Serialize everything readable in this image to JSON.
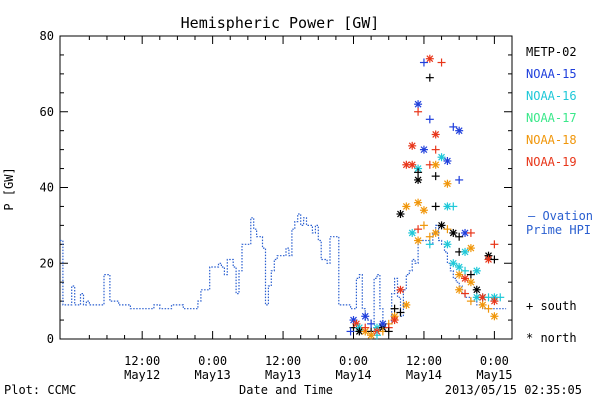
{
  "chart_data": {
    "type": "scatter",
    "title": "Hemispheric Power [GW]",
    "ylabel": "P [GW]",
    "xlabel": "Date and Time",
    "ylim": [
      0,
      80
    ],
    "y_ticks": [
      "0",
      "20",
      "40",
      "60",
      "80"
    ],
    "x_unit": "hours since May 11 00:00 (2013)",
    "xlim": [
      -2,
      75
    ],
    "x_ticks": [
      {
        "x": 12,
        "time": "12:00",
        "date": "May12"
      },
      {
        "x": 24,
        "time": "0:00",
        "date": "May13"
      },
      {
        "x": 36,
        "time": "12:00",
        "date": "May13"
      },
      {
        "x": 48,
        "time": "0:00",
        "date": "May14"
      },
      {
        "x": 60,
        "time": "12:00",
        "date": "May14"
      },
      {
        "x": 72,
        "time": "0:00",
        "date": "May15"
      }
    ],
    "footer_left": "Plot: CCMC",
    "footer_right": "2013/05/15 02:35:05",
    "legend_satellites": [
      {
        "name": "METP-02",
        "color": "#000000"
      },
      {
        "name": "NOAA-15",
        "color": "#1f3fdc"
      },
      {
        "name": "NOAA-16",
        "color": "#1ec8d8"
      },
      {
        "name": "NOAA-17",
        "color": "#3ae88a"
      },
      {
        "name": "NOAA-18",
        "color": "#f0960a"
      },
      {
        "name": "NOAA-19",
        "color": "#e8361a"
      }
    ],
    "ovation_label_line1": "— Ovation",
    "ovation_label_line2": "Prime HPI",
    "ovation_color": "#2a5fd0",
    "marker_south": "+ south",
    "marker_north": "* north",
    "ovation_series": [
      [
        -2,
        26
      ],
      [
        -1.5,
        9
      ],
      [
        -1,
        9
      ],
      [
        0,
        9
      ],
      [
        0,
        14
      ],
      [
        0.5,
        14
      ],
      [
        0.5,
        9
      ],
      [
        1,
        9
      ],
      [
        1.5,
        12
      ],
      [
        2,
        9
      ],
      [
        2.5,
        10
      ],
      [
        3,
        9
      ],
      [
        4,
        9
      ],
      [
        5,
        9
      ],
      [
        5.5,
        17
      ],
      [
        6,
        17
      ],
      [
        6.5,
        10
      ],
      [
        7,
        10
      ],
      [
        8,
        9
      ],
      [
        9,
        9
      ],
      [
        10,
        8
      ],
      [
        11,
        8
      ],
      [
        12,
        8
      ],
      [
        13,
        8
      ],
      [
        14,
        9
      ],
      [
        15,
        8
      ],
      [
        16,
        8
      ],
      [
        17,
        9
      ],
      [
        18,
        9
      ],
      [
        19,
        8
      ],
      [
        20,
        8
      ],
      [
        21,
        8
      ],
      [
        21.5,
        10
      ],
      [
        22,
        13
      ],
      [
        23,
        13
      ],
      [
        23.5,
        19
      ],
      [
        24,
        19
      ],
      [
        25,
        20
      ],
      [
        25.5,
        19
      ],
      [
        26,
        17
      ],
      [
        26.5,
        21
      ],
      [
        27,
        21
      ],
      [
        27.5,
        19
      ],
      [
        28,
        12
      ],
      [
        28.5,
        18
      ],
      [
        29,
        25
      ],
      [
        30,
        25
      ],
      [
        30.5,
        32
      ],
      [
        31,
        29
      ],
      [
        31.5,
        27
      ],
      [
        32,
        27
      ],
      [
        32.5,
        24
      ],
      [
        33,
        9
      ],
      [
        33.5,
        14
      ],
      [
        34,
        18
      ],
      [
        34.5,
        21
      ],
      [
        35,
        22
      ],
      [
        36,
        22
      ],
      [
        36.5,
        24
      ],
      [
        37,
        22
      ],
      [
        37.5,
        29
      ],
      [
        38,
        31
      ],
      [
        38.5,
        33
      ],
      [
        39,
        30
      ],
      [
        39.5,
        32
      ],
      [
        40,
        30
      ],
      [
        41,
        28
      ],
      [
        41.5,
        30
      ],
      [
        42,
        26
      ],
      [
        42.5,
        21
      ],
      [
        43,
        21
      ],
      [
        43.5,
        20
      ],
      [
        44,
        27
      ],
      [
        44.5,
        27
      ],
      [
        45,
        27
      ],
      [
        45.5,
        9
      ],
      [
        46,
        9
      ],
      [
        46.5,
        9
      ],
      [
        47,
        9
      ],
      [
        47.5,
        8
      ],
      [
        48,
        8
      ],
      [
        48.5,
        16
      ],
      [
        49,
        17
      ],
      [
        49.5,
        8
      ],
      [
        50,
        5
      ],
      [
        51,
        4
      ],
      [
        51.5,
        16
      ],
      [
        52,
        17
      ],
      [
        52.5,
        8
      ],
      [
        53,
        4
      ],
      [
        54,
        4
      ],
      [
        54.5,
        12
      ],
      [
        55,
        16
      ],
      [
        55.5,
        11
      ],
      [
        56,
        6
      ],
      [
        56.5,
        13
      ],
      [
        57,
        17
      ],
      [
        57.5,
        18
      ],
      [
        58,
        21
      ],
      [
        58.5,
        20
      ],
      [
        59,
        26
      ],
      [
        59.5,
        26
      ],
      [
        60,
        26
      ],
      [
        60.5,
        26
      ],
      [
        61,
        25
      ],
      [
        61.5,
        28
      ],
      [
        62,
        30
      ],
      [
        62.5,
        26
      ],
      [
        63,
        25
      ],
      [
        63.5,
        23
      ],
      [
        64,
        20
      ],
      [
        64.5,
        18
      ],
      [
        65,
        16
      ],
      [
        65.5,
        15
      ],
      [
        66,
        14
      ],
      [
        66.5,
        12
      ],
      [
        67,
        11
      ],
      [
        68,
        10
      ],
      [
        69,
        9
      ],
      [
        70,
        8
      ],
      [
        71,
        8
      ],
      [
        72,
        8
      ],
      [
        73,
        8
      ],
      [
        74,
        8
      ]
    ],
    "points": [
      {
        "sat": "NOAA-15",
        "m": "+",
        "x": 60,
        "y": 73
      },
      {
        "sat": "NOAA-19",
        "m": "+",
        "x": 63,
        "y": 73
      },
      {
        "sat": "METP-02",
        "m": "+",
        "x": 61,
        "y": 69
      },
      {
        "sat": "NOAA-19",
        "m": "*",
        "x": 61,
        "y": 74
      },
      {
        "sat": "NOAA-15",
        "m": "*",
        "x": 59,
        "y": 62
      },
      {
        "sat": "NOAA-19",
        "m": "+",
        "x": 59,
        "y": 60
      },
      {
        "sat": "NOAA-15",
        "m": "+",
        "x": 61,
        "y": 58
      },
      {
        "sat": "NOAA-19",
        "m": "*",
        "x": 62,
        "y": 54
      },
      {
        "sat": "NOAA-15",
        "m": "*",
        "x": 60,
        "y": 50
      },
      {
        "sat": "NOAA-19",
        "m": "*",
        "x": 58,
        "y": 51
      },
      {
        "sat": "NOAA-19",
        "m": "+",
        "x": 62,
        "y": 50
      },
      {
        "sat": "NOAA-15",
        "m": "+",
        "x": 65,
        "y": 56
      },
      {
        "sat": "NOAA-15",
        "m": "*",
        "x": 66,
        "y": 55
      },
      {
        "sat": "NOAA-16",
        "m": "*",
        "x": 63,
        "y": 48
      },
      {
        "sat": "NOAA-19",
        "m": "*",
        "x": 58,
        "y": 46
      },
      {
        "sat": "NOAA-15",
        "m": "*",
        "x": 64,
        "y": 47
      },
      {
        "sat": "NOAA-19",
        "m": "+",
        "x": 61,
        "y": 46
      },
      {
        "sat": "NOAA-18",
        "m": "*",
        "x": 62,
        "y": 46
      },
      {
        "sat": "NOAA-16",
        "m": "*",
        "x": 59,
        "y": 45
      },
      {
        "sat": "NOAA-19",
        "m": "*",
        "x": 57,
        "y": 46
      },
      {
        "sat": "METP-02",
        "m": "*",
        "x": 59,
        "y": 42
      },
      {
        "sat": "METP-02",
        "m": "+",
        "x": 59,
        "y": 44
      },
      {
        "sat": "METP-02",
        "m": "+",
        "x": 62,
        "y": 43
      },
      {
        "sat": "NOAA-18",
        "m": "*",
        "x": 64,
        "y": 41
      },
      {
        "sat": "NOAA-15",
        "m": "+",
        "x": 66,
        "y": 42
      },
      {
        "sat": "METP-02",
        "m": "*",
        "x": 56,
        "y": 33
      },
      {
        "sat": "NOAA-18",
        "m": "*",
        "x": 57,
        "y": 35
      },
      {
        "sat": "NOAA-18",
        "m": "*",
        "x": 59,
        "y": 36
      },
      {
        "sat": "NOAA-18",
        "m": "*",
        "x": 60,
        "y": 34
      },
      {
        "sat": "METP-02",
        "m": "+",
        "x": 62,
        "y": 35
      },
      {
        "sat": "NOAA-16",
        "m": "*",
        "x": 64,
        "y": 35
      },
      {
        "sat": "NOAA-16",
        "m": "+",
        "x": 65,
        "y": 35
      },
      {
        "sat": "NOAA-16",
        "m": "*",
        "x": 58,
        "y": 28
      },
      {
        "sat": "NOAA-19",
        "m": "+",
        "x": 59,
        "y": 29
      },
      {
        "sat": "NOAA-18",
        "m": "+",
        "x": 60,
        "y": 30
      },
      {
        "sat": "NOAA-18",
        "m": "*",
        "x": 62,
        "y": 28
      },
      {
        "sat": "METP-02",
        "m": "*",
        "x": 63,
        "y": 30
      },
      {
        "sat": "NOAA-18",
        "m": "+",
        "x": 64,
        "y": 29
      },
      {
        "sat": "METP-02",
        "m": "*",
        "x": 65,
        "y": 28
      },
      {
        "sat": "METP-02",
        "m": "+",
        "x": 66,
        "y": 27
      },
      {
        "sat": "NOAA-15",
        "m": "*",
        "x": 67,
        "y": 28
      },
      {
        "sat": "NOAA-19",
        "m": "+",
        "x": 68,
        "y": 28
      },
      {
        "sat": "NOAA-18",
        "m": "*",
        "x": 59,
        "y": 26
      },
      {
        "sat": "NOAA-18",
        "m": "+",
        "x": 61,
        "y": 27
      },
      {
        "sat": "NOAA-16",
        "m": "+",
        "x": 61,
        "y": 25
      },
      {
        "sat": "NOAA-16",
        "m": "*",
        "x": 64,
        "y": 25
      },
      {
        "sat": "METP-02",
        "m": "+",
        "x": 66,
        "y": 23
      },
      {
        "sat": "NOAA-16",
        "m": "*",
        "x": 67,
        "y": 23
      },
      {
        "sat": "NOAA-18",
        "m": "*",
        "x": 68,
        "y": 24
      },
      {
        "sat": "NOAA-19",
        "m": "+",
        "x": 72,
        "y": 25
      },
      {
        "sat": "METP-02",
        "m": "*",
        "x": 71,
        "y": 22
      },
      {
        "sat": "NOAA-19",
        "m": "*",
        "x": 71,
        "y": 21
      },
      {
        "sat": "METP-02",
        "m": "+",
        "x": 72,
        "y": 21
      },
      {
        "sat": "NOAA-16",
        "m": "*",
        "x": 65,
        "y": 20
      },
      {
        "sat": "NOAA-16",
        "m": "*",
        "x": 66,
        "y": 19
      },
      {
        "sat": "NOAA-18",
        "m": "*",
        "x": 66,
        "y": 17
      },
      {
        "sat": "NOAA-16",
        "m": "+",
        "x": 67,
        "y": 18
      },
      {
        "sat": "NOAA-19",
        "m": "*",
        "x": 67,
        "y": 16
      },
      {
        "sat": "METP-02",
        "m": "+",
        "x": 68,
        "y": 17
      },
      {
        "sat": "NOAA-18",
        "m": "*",
        "x": 68,
        "y": 15
      },
      {
        "sat": "METP-02",
        "m": "*",
        "x": 69,
        "y": 13
      },
      {
        "sat": "NOAA-16",
        "m": "*",
        "x": 69,
        "y": 18
      },
      {
        "sat": "NOAA-18",
        "m": "*",
        "x": 66,
        "y": 13
      },
      {
        "sat": "NOAA-19",
        "m": "+",
        "x": 67,
        "y": 12
      },
      {
        "sat": "NOAA-18",
        "m": "+",
        "x": 68,
        "y": 10
      },
      {
        "sat": "NOAA-16",
        "m": "*",
        "x": 69,
        "y": 11
      },
      {
        "sat": "NOAA-16",
        "m": "*",
        "x": 70,
        "y": 11
      },
      {
        "sat": "NOAA-18",
        "m": "*",
        "x": 70,
        "y": 9
      },
      {
        "sat": "NOAA-19",
        "m": "*",
        "x": 70,
        "y": 11
      },
      {
        "sat": "NOAA-16",
        "m": "+",
        "x": 71,
        "y": 11
      },
      {
        "sat": "NOAA-16",
        "m": "*",
        "x": 72,
        "y": 11
      },
      {
        "sat": "NOAA-18",
        "m": "+",
        "x": 71,
        "y": 8
      },
      {
        "sat": "NOAA-19",
        "m": "*",
        "x": 72,
        "y": 10
      },
      {
        "sat": "NOAA-16",
        "m": "+",
        "x": 73,
        "y": 11
      },
      {
        "sat": "NOAA-18",
        "m": "*",
        "x": 72,
        "y": 6
      },
      {
        "sat": "NOAA-19",
        "m": "*",
        "x": 56,
        "y": 13
      },
      {
        "sat": "METP-02",
        "m": "+",
        "x": 55,
        "y": 8
      },
      {
        "sat": "NOAA-18",
        "m": "*",
        "x": 55,
        "y": 6
      },
      {
        "sat": "NOAA-19",
        "m": "*",
        "x": 55,
        "y": 5
      },
      {
        "sat": "NOAA-18",
        "m": "+",
        "x": 54,
        "y": 4
      },
      {
        "sat": "METP-02",
        "m": "+",
        "x": 56,
        "y": 7
      },
      {
        "sat": "NOAA-18",
        "m": "*",
        "x": 57,
        "y": 9
      },
      {
        "sat": "NOAA-15",
        "m": "*",
        "x": 48,
        "y": 5
      },
      {
        "sat": "METP-02",
        "m": "+",
        "x": 48,
        "y": 3
      },
      {
        "sat": "NOAA-19",
        "m": "*",
        "x": 48.5,
        "y": 4
      },
      {
        "sat": "NOAA-16",
        "m": "*",
        "x": 49,
        "y": 3
      },
      {
        "sat": "METP-02",
        "m": "*",
        "x": 49,
        "y": 2
      },
      {
        "sat": "NOAA-15",
        "m": "*",
        "x": 50,
        "y": 6
      },
      {
        "sat": "NOAA-18",
        "m": "*",
        "x": 50,
        "y": 2
      },
      {
        "sat": "NOAA-19",
        "m": "+",
        "x": 50,
        "y": 3
      },
      {
        "sat": "METP-02",
        "m": "+",
        "x": 51,
        "y": 2
      },
      {
        "sat": "NOAA-15",
        "m": "+",
        "x": 51,
        "y": 4
      },
      {
        "sat": "NOAA-16",
        "m": "*",
        "x": 52,
        "y": 3
      },
      {
        "sat": "NOAA-19",
        "m": "*",
        "x": 52,
        "y": 2
      },
      {
        "sat": "METP-02",
        "m": "*",
        "x": 53,
        "y": 3
      },
      {
        "sat": "NOAA-15",
        "m": "*",
        "x": 53,
        "y": 4
      },
      {
        "sat": "NOAA-18",
        "m": "+",
        "x": 53,
        "y": 2
      },
      {
        "sat": "NOAA-16",
        "m": "+",
        "x": 52,
        "y": 1
      },
      {
        "sat": "NOAA-19",
        "m": "+",
        "x": 54,
        "y": 3
      },
      {
        "sat": "METP-02",
        "m": "+",
        "x": 54,
        "y": 2
      },
      {
        "sat": "NOAA-15",
        "m": "+",
        "x": 47.5,
        "y": 2
      },
      {
        "sat": "NOAA-18",
        "m": "*",
        "x": 51,
        "y": 1
      }
    ]
  }
}
